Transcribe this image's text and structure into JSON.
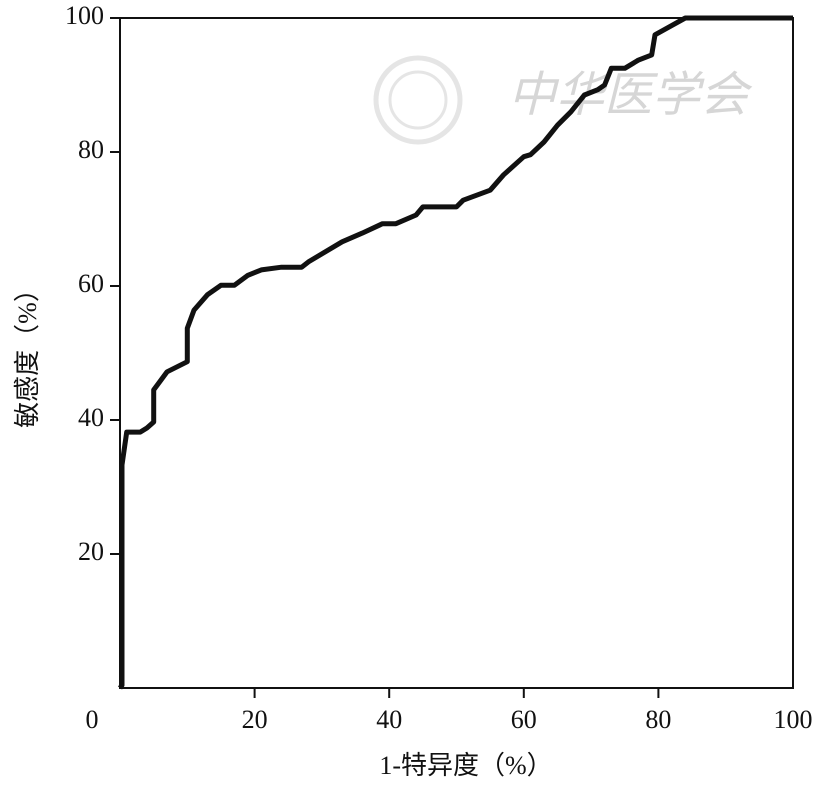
{
  "chart_data": {
    "type": "line",
    "watermark": "中华医学会",
    "x_label": "1-特异度（%）",
    "y_label": "敏感度（%）",
    "xlim": [
      0,
      100
    ],
    "ylim": [
      0,
      100
    ],
    "xticks": [
      0,
      20,
      40,
      60,
      80,
      100
    ],
    "yticks": [
      20,
      40,
      60,
      80,
      100
    ],
    "series": [
      {
        "color": "#111111",
        "x": [
          0,
          0.3,
          0.3,
          1,
          3,
          4,
          5,
          5,
          7,
          10,
          10,
          11,
          13,
          15,
          17,
          19,
          21,
          24,
          27,
          28,
          33,
          36,
          39,
          41,
          44,
          45,
          50,
          51,
          55,
          57,
          60,
          61,
          63,
          65,
          67,
          69,
          71,
          72,
          73,
          75,
          77,
          79,
          79.5,
          82,
          84,
          100
        ],
        "values": [
          0,
          0.4,
          33.3,
          38.2,
          38.2,
          38.8,
          39.7,
          44.5,
          47.2,
          48.7,
          53.7,
          56.4,
          58.7,
          60.1,
          60.1,
          61.6,
          62.4,
          62.8,
          62.8,
          63.6,
          66.6,
          67.9,
          69.3,
          69.3,
          70.6,
          71.8,
          71.8,
          72.8,
          74.3,
          76.6,
          79.3,
          79.6,
          81.5,
          84,
          86,
          88.5,
          89.3,
          90,
          92.5,
          92.5,
          93.7,
          94.5,
          97.5,
          98.9,
          100,
          100
        ]
      }
    ]
  }
}
